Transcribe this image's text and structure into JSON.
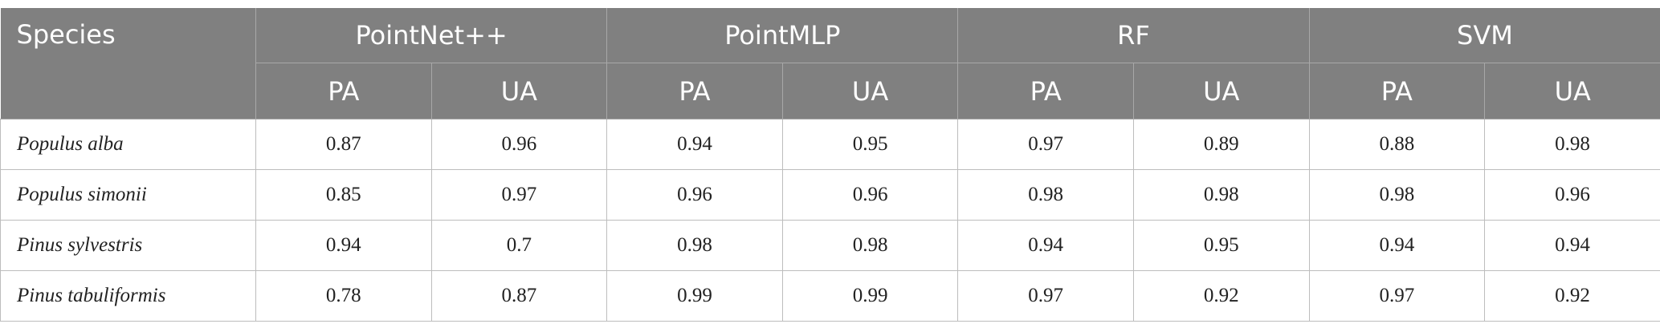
{
  "table": {
    "species_header": "Species",
    "groups": [
      {
        "name": "PointNet++",
        "sub": [
          "PA",
          "UA"
        ]
      },
      {
        "name": "PointMLP",
        "sub": [
          "PA",
          "UA"
        ]
      },
      {
        "name": "RF",
        "sub": [
          "PA",
          "UA"
        ]
      },
      {
        "name": "SVM",
        "sub": [
          "PA",
          "UA"
        ]
      }
    ],
    "rows": [
      {
        "species": "Populus alba",
        "values": [
          0.87,
          0.96,
          0.94,
          0.95,
          0.97,
          0.89,
          0.88,
          0.98
        ]
      },
      {
        "species": "Populus simonii",
        "values": [
          0.85,
          0.97,
          0.96,
          0.96,
          0.98,
          0.98,
          0.98,
          0.96
        ]
      },
      {
        "species": "Pinus sylvestris",
        "values": [
          0.94,
          0.7,
          0.98,
          0.98,
          0.94,
          0.95,
          0.94,
          0.94
        ]
      },
      {
        "species": "Pinus tabuliformis",
        "values": [
          0.78,
          0.87,
          0.99,
          0.99,
          0.97,
          0.92,
          0.97,
          0.92
        ]
      }
    ]
  }
}
